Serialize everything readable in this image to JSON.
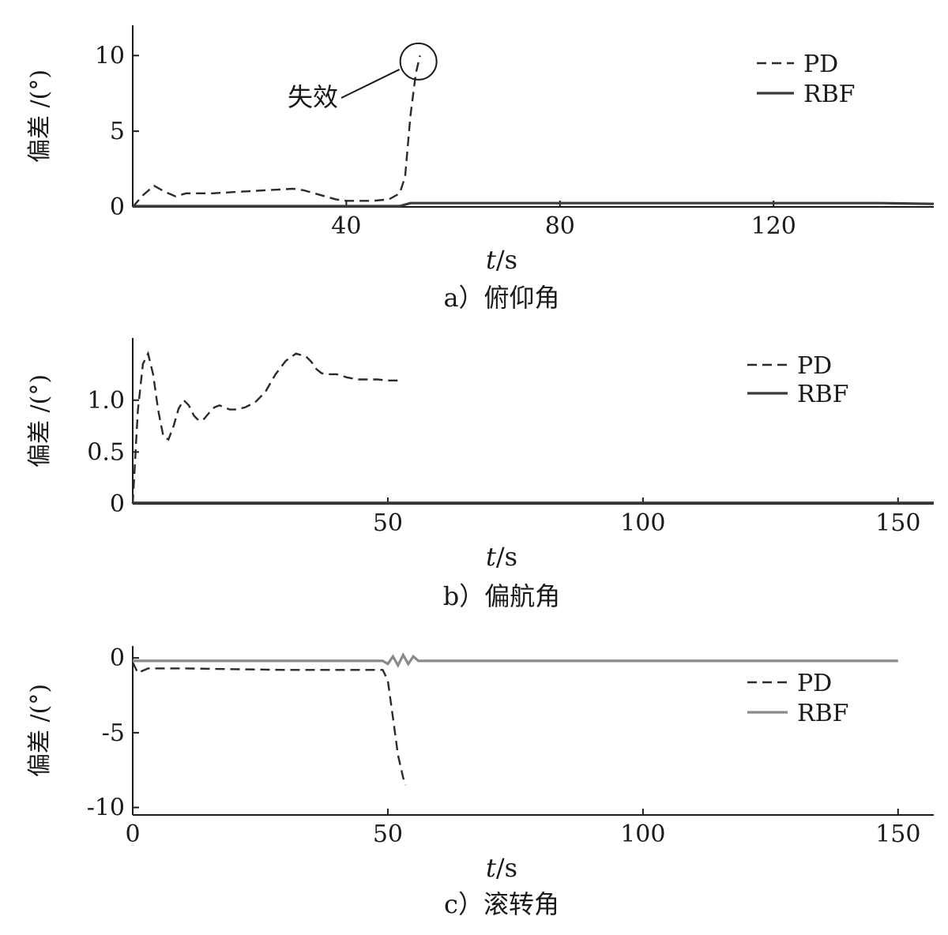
{
  "chart_data": [
    {
      "type": "line",
      "panel": "a",
      "caption": "a）俯仰角",
      "xlabel_var": "t",
      "xlabel_unit": "/s",
      "ylabel": "偏差 /(°)",
      "xlim": [
        0,
        150
      ],
      "ylim": [
        0,
        12
      ],
      "xticks": [
        40,
        80,
        120
      ],
      "yticks": [
        0,
        5,
        10
      ],
      "ytick_labels": [
        "0",
        "5",
        "10"
      ],
      "legend_position": "top-right",
      "annotation": {
        "text": "失效",
        "x": 53.5,
        "y": 9.5
      },
      "series": [
        {
          "name": "PD",
          "style": "dashed",
          "x": [
            0,
            2,
            4,
            6,
            8,
            10,
            15,
            20,
            25,
            30,
            32,
            35,
            38,
            40,
            45,
            48,
            50,
            51,
            52,
            53,
            53.8
          ],
          "y": [
            0,
            0.8,
            1.4,
            1.0,
            0.7,
            0.9,
            0.9,
            1.0,
            1.1,
            1.2,
            1.1,
            0.8,
            0.5,
            0.4,
            0.4,
            0.5,
            0.9,
            2.0,
            6.0,
            8.8,
            10.0
          ]
        },
        {
          "name": "RBF",
          "style": "solid",
          "x": [
            0,
            50,
            52,
            60,
            100,
            140,
            150
          ],
          "y": [
            0.05,
            0.05,
            0.25,
            0.25,
            0.25,
            0.25,
            0.2
          ]
        }
      ]
    },
    {
      "type": "line",
      "panel": "b",
      "caption": "b）偏航角",
      "xlabel_var": "t",
      "xlabel_unit": "/s",
      "ylabel": "偏差 /(°)",
      "xlim": [
        0,
        157
      ],
      "ylim": [
        0,
        1.6
      ],
      "xticks": [
        50,
        100,
        150
      ],
      "yticks": [
        0,
        0.5,
        1.0
      ],
      "ytick_labels": [
        "0",
        "0.5",
        "1.0"
      ],
      "legend_position": "top-right",
      "series": [
        {
          "name": "PD",
          "style": "dashed",
          "x": [
            0,
            1,
            2,
            3,
            4,
            5,
            6,
            7,
            8,
            9,
            10,
            11,
            12,
            13,
            14,
            15,
            16,
            17,
            18,
            19,
            20,
            22,
            24,
            26,
            28,
            30,
            32,
            34,
            35,
            36,
            37,
            38,
            40,
            42,
            44,
            46,
            48,
            50,
            53
          ],
          "y": [
            0,
            0.9,
            1.35,
            1.45,
            1.25,
            0.9,
            0.65,
            0.62,
            0.75,
            0.92,
            1.0,
            0.95,
            0.85,
            0.8,
            0.82,
            0.88,
            0.93,
            0.95,
            0.93,
            0.91,
            0.91,
            0.93,
            0.98,
            1.08,
            1.25,
            1.38,
            1.45,
            1.42,
            1.37,
            1.3,
            1.26,
            1.25,
            1.25,
            1.22,
            1.2,
            1.2,
            1.2,
            1.19,
            1.19
          ]
        },
        {
          "name": "RBF",
          "style": "solid",
          "x": [
            0,
            150,
            157
          ],
          "y": [
            0.01,
            0.01,
            0.01
          ]
        }
      ]
    },
    {
      "type": "line",
      "panel": "c",
      "caption": "c）滚转角",
      "xlabel_var": "t",
      "xlabel_unit": "/s",
      "ylabel": "偏差 /(°)",
      "xlim": [
        0,
        157
      ],
      "ylim": [
        -10.5,
        0.8
      ],
      "xticks": [
        0,
        50,
        100,
        150
      ],
      "yticks": [
        0,
        -5,
        -10
      ],
      "ytick_labels": [
        "0",
        "-5",
        "-10"
      ],
      "legend_position": "right",
      "series": [
        {
          "name": "PD",
          "style": "dashed",
          "x": [
            0,
            1,
            3,
            5,
            10,
            20,
            30,
            40,
            49,
            50,
            51,
            52,
            53,
            53.5
          ],
          "y": [
            -0.3,
            -1.0,
            -0.7,
            -0.7,
            -0.7,
            -0.75,
            -0.8,
            -0.8,
            -0.8,
            -1.5,
            -4.0,
            -6.5,
            -8.0,
            -8.5
          ]
        },
        {
          "name": "RBF",
          "style": "solid",
          "x": [
            0,
            49,
            50,
            51,
            52,
            53,
            54,
            55,
            56,
            60,
            100,
            150
          ],
          "y": [
            -0.2,
            -0.2,
            -0.4,
            0.1,
            -0.5,
            0.2,
            -0.4,
            0.1,
            -0.2,
            -0.2,
            -0.2,
            -0.2
          ]
        }
      ]
    }
  ]
}
